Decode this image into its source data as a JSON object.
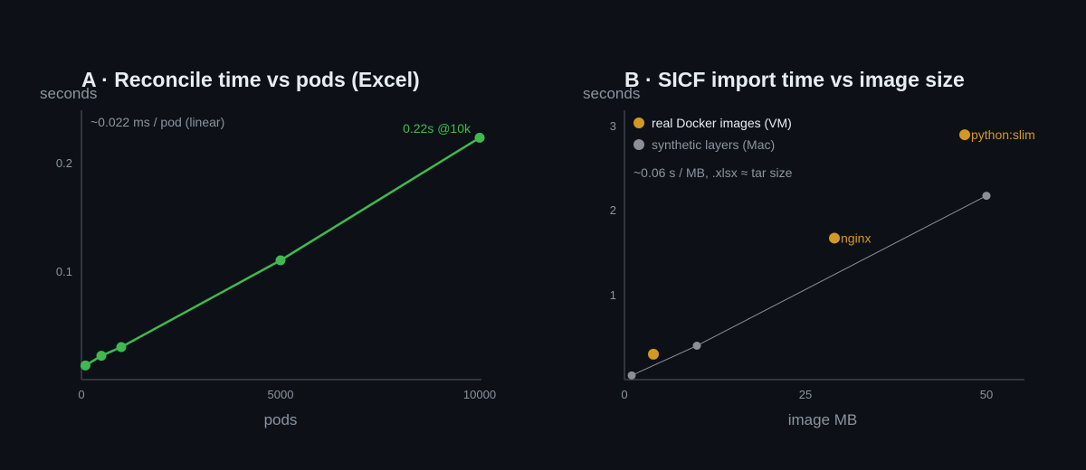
{
  "chart_data": [
    {
      "type": "line",
      "title": "A · Reconcile time vs pods (Excel)",
      "xlabel": "pods",
      "ylabel": "seconds",
      "xlim": [
        0,
        10000
      ],
      "ylim": [
        0,
        0.25
      ],
      "x_ticks": [
        "0",
        "5000",
        "10000"
      ],
      "y_ticks": [
        "0.1",
        "0.2"
      ],
      "grid": false,
      "series": [
        {
          "color": "#3fb950",
          "x": [
            100,
            500,
            1000,
            5000,
            10000
          ],
          "y": [
            0.013,
            0.022,
            0.03,
            0.11,
            0.223
          ]
        }
      ],
      "annotations": [
        {
          "text": "~0.022 ms / pod  (linear)"
        },
        {
          "text": "0.22s @10k",
          "color": "#3fb950"
        }
      ]
    },
    {
      "type": "scatter",
      "title": "B · SICF import time vs image size",
      "xlabel": "image MB",
      "ylabel": "seconds",
      "xlim": [
        0,
        55
      ],
      "ylim": [
        0,
        3.2
      ],
      "x_ticks": [
        "0",
        "25",
        "50"
      ],
      "y_ticks": [
        "1",
        "2",
        "3"
      ],
      "grid": false,
      "legend_position": "top-left",
      "series": [
        {
          "name": "real Docker images (VM)",
          "color": "#d29922",
          "x": [
            4,
            29,
            47
          ],
          "y": [
            0.3,
            1.67,
            2.89
          ],
          "labels": [
            "",
            "nginx",
            "python:slim"
          ]
        },
        {
          "name": "synthetic layers (Mac)",
          "color": "#8b8f98",
          "x": [
            1,
            10,
            50
          ],
          "y": [
            0.05,
            0.4,
            2.17
          ]
        }
      ],
      "annotations": [
        {
          "text": "~0.06 s / MB, .xlsx ≈ tar size"
        }
      ]
    }
  ]
}
